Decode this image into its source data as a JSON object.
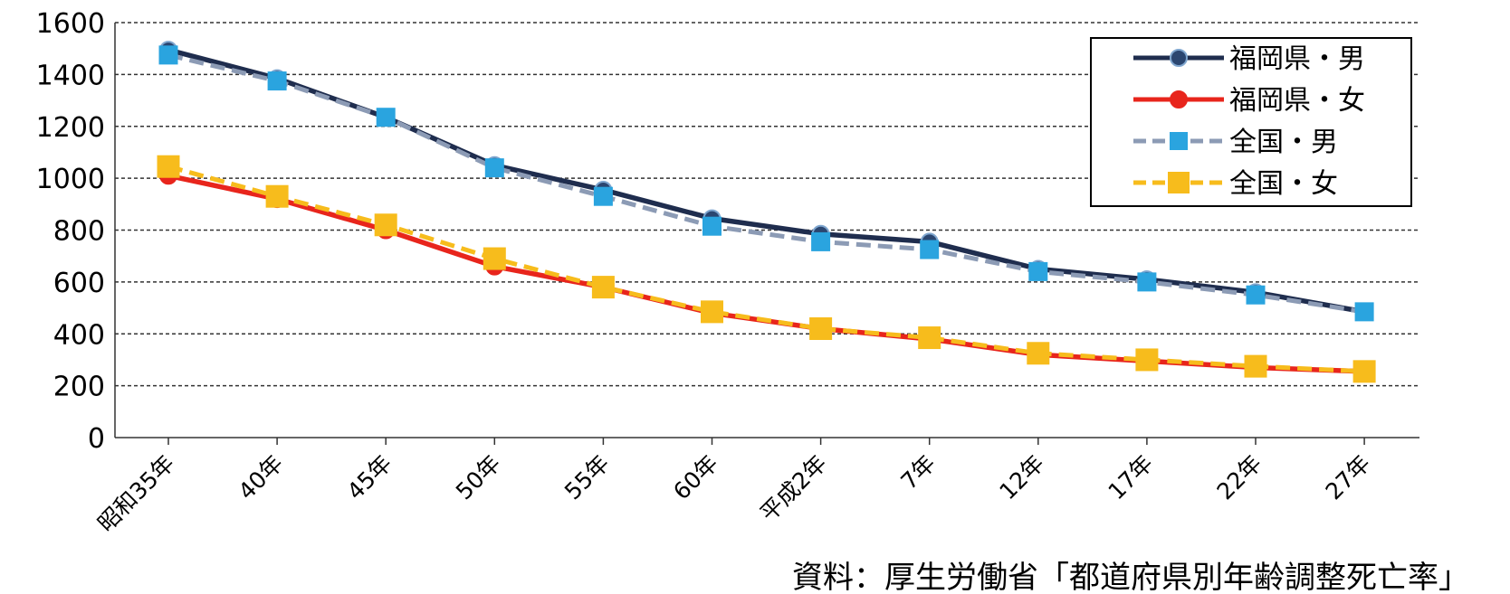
{
  "chart_data": {
    "type": "line",
    "categories": [
      "昭和35年",
      "40年",
      "45年",
      "50年",
      "55年",
      "60年",
      "平成2年",
      "7年",
      "12年",
      "17年",
      "22年",
      "27年"
    ],
    "yticks": [
      "0",
      "200",
      "400",
      "600",
      "800",
      "1000",
      "1200",
      "1400",
      "1600"
    ],
    "ylim": [
      0,
      1600
    ],
    "grid": true,
    "legend_position": "top-right",
    "series": [
      {
        "name": "福岡県・男",
        "color": "#1f2d4e",
        "marker": "circle",
        "dash": "solid",
        "values": [
          1495,
          1385,
          1235,
          1050,
          955,
          845,
          785,
          755,
          650,
          610,
          560,
          485
        ]
      },
      {
        "name": "福岡県・女",
        "color": "#e8251c",
        "marker": "circle",
        "dash": "solid",
        "values": [
          1010,
          920,
          800,
          660,
          580,
          480,
          420,
          380,
          320,
          295,
          270,
          255
        ]
      },
      {
        "name": "全国・男",
        "color": "#8c9bb5",
        "marker_color": "#2aa4df",
        "marker": "square",
        "dash": "dashed",
        "values": [
          1475,
          1375,
          1235,
          1040,
          930,
          815,
          755,
          725,
          640,
          600,
          550,
          485
        ]
      },
      {
        "name": "全国・女",
        "color": "#f7bc1c",
        "marker_color": "#f7bc1c",
        "marker": "square",
        "dash": "dashed",
        "values": [
          1045,
          930,
          820,
          690,
          580,
          485,
          420,
          385,
          325,
          300,
          275,
          255
        ]
      }
    ],
    "source_note": "資料：厚生労働省「都道府県別年齢調整死亡率」"
  }
}
